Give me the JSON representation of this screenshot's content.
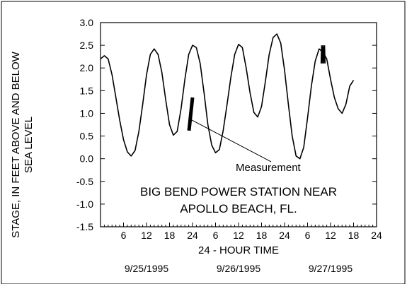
{
  "chart_data": {
    "type": "line",
    "title": [
      "BIG BEND POWER STATION NEAR",
      "APOLLO BEACH, FL."
    ],
    "xlabel": "24 - HOUR TIME",
    "ylabel": [
      "STAGE, IN FEET ABOVE AND BELOW",
      "SEA LEVEL"
    ],
    "ylim": [
      -1.5,
      3.0
    ],
    "yticks": [
      -1.5,
      -1.0,
      -0.5,
      0.0,
      0.5,
      1.0,
      1.5,
      2.0,
      2.5,
      3.0
    ],
    "ytick_labels": [
      "-1.5",
      "-1.0",
      "-0.5",
      "0.0",
      "0.5",
      "1.0",
      "1.5",
      "2.0",
      "2.5",
      "3.0"
    ],
    "xlim_hours": [
      0,
      72
    ],
    "xticks_hours": [
      6,
      12,
      18,
      24,
      30,
      36,
      42,
      48,
      54,
      60,
      66,
      72
    ],
    "xtick_labels": [
      "6",
      "12",
      "18",
      "24",
      "6",
      "12",
      "18",
      "24",
      "6",
      "12",
      "18",
      "24"
    ],
    "date_labels": [
      {
        "label": "9/25/1995",
        "hour": 12
      },
      {
        "label": "9/26/1995",
        "hour": 36
      },
      {
        "label": "9/27/1995",
        "hour": 60
      }
    ],
    "grid": false,
    "series": [
      {
        "line_color": "#000000",
        "points": [
          [
            0,
            2.2
          ],
          [
            1,
            2.27
          ],
          [
            2,
            2.2
          ],
          [
            3,
            1.85
          ],
          [
            4,
            1.35
          ],
          [
            5,
            0.85
          ],
          [
            6,
            0.42
          ],
          [
            7,
            0.15
          ],
          [
            8,
            0.06
          ],
          [
            9,
            0.18
          ],
          [
            10,
            0.6
          ],
          [
            11,
            1.2
          ],
          [
            12,
            1.85
          ],
          [
            13,
            2.3
          ],
          [
            14,
            2.42
          ],
          [
            15,
            2.3
          ],
          [
            16,
            1.9
          ],
          [
            17,
            1.3
          ],
          [
            18,
            0.75
          ],
          [
            19,
            0.52
          ],
          [
            20,
            0.6
          ],
          [
            21,
            1.1
          ],
          [
            22,
            1.75
          ],
          [
            23,
            2.3
          ],
          [
            24,
            2.5
          ],
          [
            25,
            2.45
          ],
          [
            26,
            2.1
          ],
          [
            27,
            1.45
          ],
          [
            28,
            0.75
          ],
          [
            29,
            0.3
          ],
          [
            30,
            0.13
          ],
          [
            31,
            0.2
          ],
          [
            32,
            0.62
          ],
          [
            33,
            1.2
          ],
          [
            34,
            1.8
          ],
          [
            35,
            2.3
          ],
          [
            36,
            2.52
          ],
          [
            37,
            2.45
          ],
          [
            38,
            2.0
          ],
          [
            39,
            1.45
          ],
          [
            40,
            1.02
          ],
          [
            41,
            0.92
          ],
          [
            42,
            1.15
          ],
          [
            43,
            1.7
          ],
          [
            44,
            2.3
          ],
          [
            45,
            2.67
          ],
          [
            46,
            2.75
          ],
          [
            47,
            2.55
          ],
          [
            48,
            1.95
          ],
          [
            49,
            1.2
          ],
          [
            50,
            0.5
          ],
          [
            51,
            0.06
          ],
          [
            52,
            0.0
          ],
          [
            53,
            0.25
          ],
          [
            54,
            0.9
          ],
          [
            55,
            1.6
          ],
          [
            56,
            2.15
          ],
          [
            57,
            2.42
          ],
          [
            58,
            2.35
          ],
          [
            59,
            2.2
          ],
          [
            60,
            1.75
          ],
          [
            61,
            1.35
          ],
          [
            62,
            1.1
          ],
          [
            63,
            1.0
          ],
          [
            64,
            1.2
          ],
          [
            65,
            1.6
          ],
          [
            66,
            1.73
          ]
        ]
      }
    ],
    "measurement": {
      "label": "Measurement",
      "hour": 24,
      "y_range": [
        0.62,
        1.35
      ]
    },
    "noise_segment": {
      "hour_range": [
        57.5,
        58.6
      ],
      "y_range": [
        2.1,
        2.5
      ]
    }
  }
}
